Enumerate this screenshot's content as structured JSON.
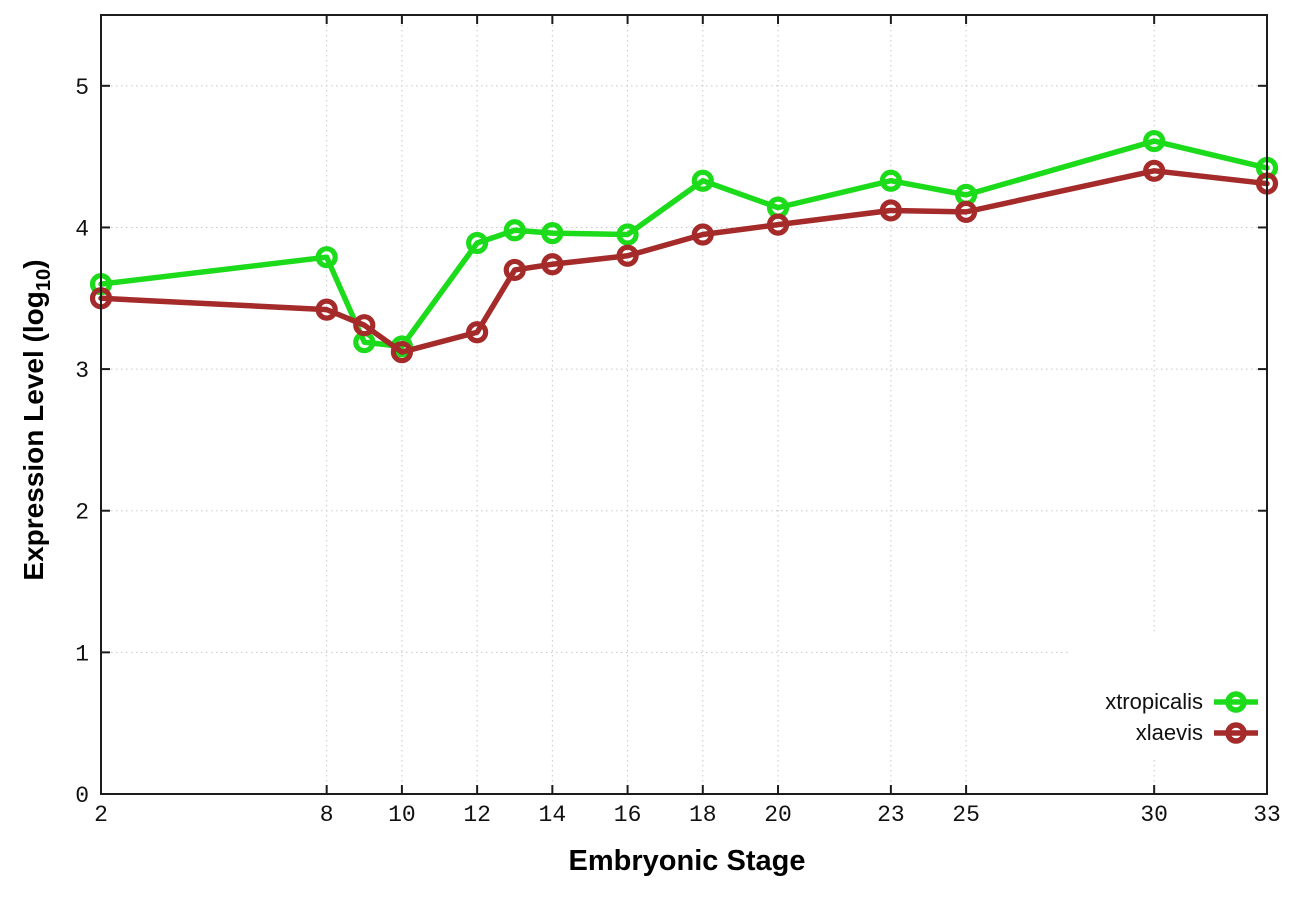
{
  "figure": {
    "background": "#ffffff",
    "xlabel": "Embryonic Stage",
    "ylabel_prefix": "Expression Level (log",
    "ylabel_sub": "10",
    "ylabel_suffix": ")"
  },
  "chart_data": {
    "type": "line",
    "title": "",
    "xlabel": "Embryonic Stage",
    "ylabel": "Expression Level (log10)",
    "x": [
      2,
      8,
      9,
      10,
      12,
      13,
      14,
      16,
      18,
      20,
      23,
      25,
      30,
      33
    ],
    "x_tick_labels": [
      2,
      8,
      10,
      12,
      14,
      16,
      18,
      20,
      23,
      25,
      30,
      33
    ],
    "y_tick_labels": [
      0,
      1,
      2,
      3,
      4,
      5
    ],
    "xlim": [
      2,
      33
    ],
    "ylim": [
      0,
      5.5
    ],
    "grid": true,
    "grid_style": "dotted",
    "legend_position": "bottom-right",
    "marker": "open-circle",
    "series": [
      {
        "name": "xtropicalis",
        "color": "#1bdb1b",
        "values": [
          3.6,
          3.79,
          3.19,
          3.16,
          3.89,
          3.98,
          3.96,
          3.95,
          4.33,
          4.14,
          4.33,
          4.23,
          4.61,
          4.42
        ]
      },
      {
        "name": "xlaevis",
        "color": "#a52a2a",
        "values": [
          3.5,
          3.42,
          3.31,
          3.12,
          3.26,
          3.7,
          3.74,
          3.8,
          3.95,
          4.02,
          4.12,
          4.11,
          4.4,
          4.31
        ]
      }
    ],
    "colors": {
      "axis": "#1c1c1c",
      "grid": "#c8c8c8",
      "tick_text": "#111111"
    }
  }
}
